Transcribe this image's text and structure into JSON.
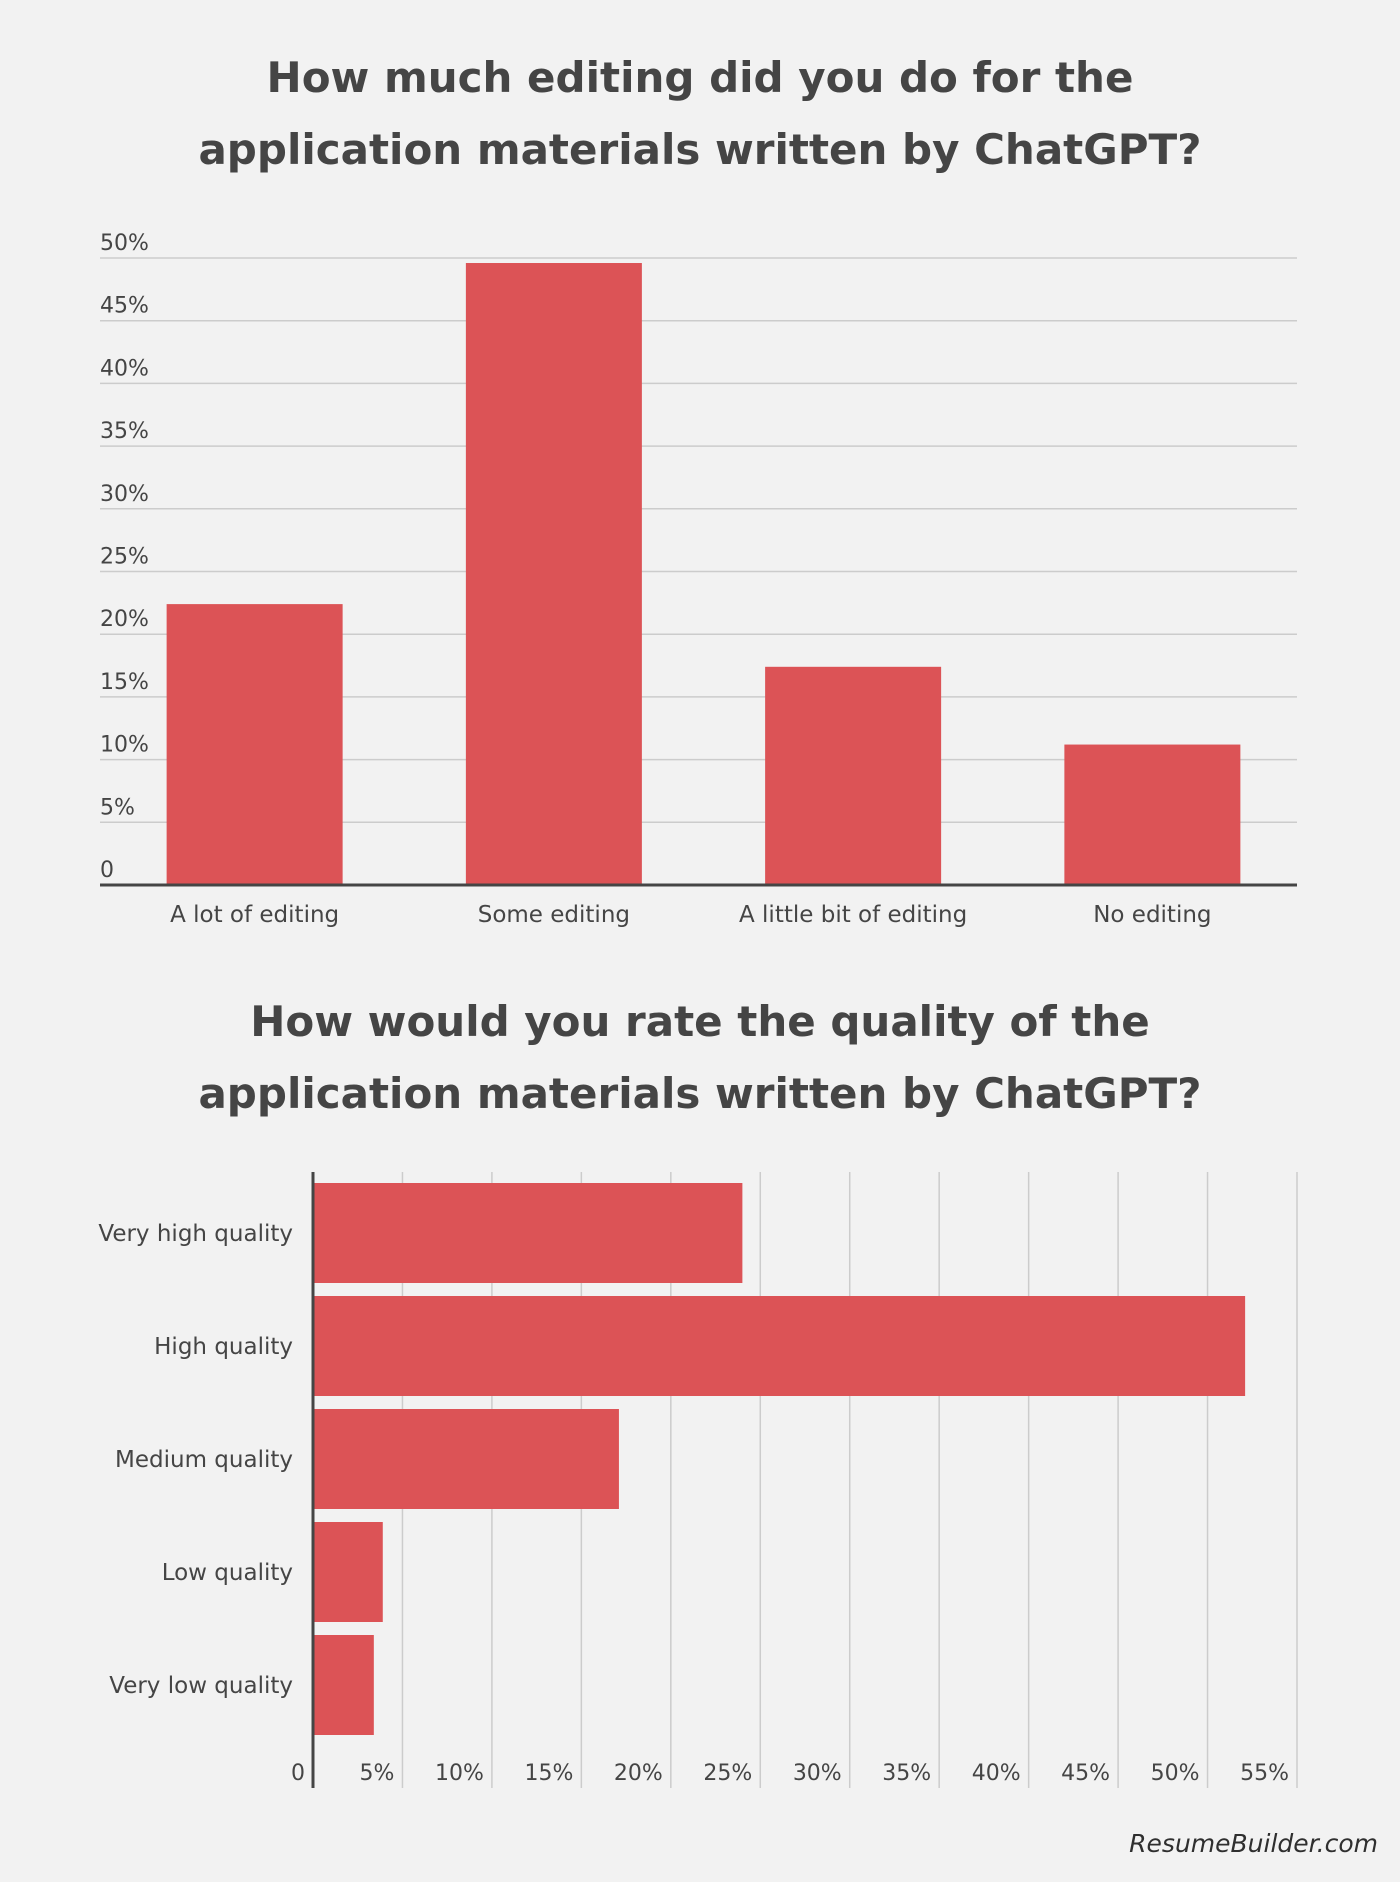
{
  "colors": {
    "bar": "#dc5356",
    "grid": "#cccccc",
    "axis": "#454545",
    "text": "#454545",
    "background": "#f2f2f2"
  },
  "chart_data": [
    {
      "type": "bar",
      "orientation": "vertical",
      "title_lines": [
        "How much editing did you do for the",
        "application materials written by ChatGPT?"
      ],
      "categories": [
        "A lot of editing",
        "Some editing",
        "A little bit of editing",
        "No editing"
      ],
      "values": [
        22.4,
        49.6,
        17.4,
        11.2
      ],
      "ylim": [
        0,
        50
      ],
      "yticks": [
        0,
        5,
        10,
        15,
        20,
        25,
        30,
        35,
        40,
        45,
        50
      ],
      "ytick_labels": [
        "0",
        "5%",
        "10%",
        "15%",
        "20%",
        "25%",
        "30%",
        "35%",
        "40%",
        "45%",
        "50%"
      ],
      "xlabel": "",
      "ylabel": "",
      "grid": true,
      "legend": "none"
    },
    {
      "type": "bar",
      "orientation": "horizontal",
      "title_lines": [
        "How would you rate the quality of the",
        "application materials written by ChatGPT?"
      ],
      "categories": [
        "Very high quality",
        "High quality",
        "Medium quality",
        "Low quality",
        "Very low quality"
      ],
      "values": [
        24,
        52.1,
        17.1,
        3.9,
        3.4
      ],
      "xlim": [
        0,
        55
      ],
      "xticks": [
        0,
        5,
        10,
        15,
        20,
        25,
        30,
        35,
        40,
        45,
        50,
        55
      ],
      "xtick_labels": [
        "0",
        "5%",
        "10%",
        "15%",
        "20%",
        "25%",
        "30%",
        "35%",
        "40%",
        "45%",
        "50%",
        "55%"
      ],
      "xlabel": "",
      "ylabel": "",
      "grid": true,
      "legend": "none"
    }
  ],
  "footer": {
    "source": "ResumeBuilder.com"
  }
}
